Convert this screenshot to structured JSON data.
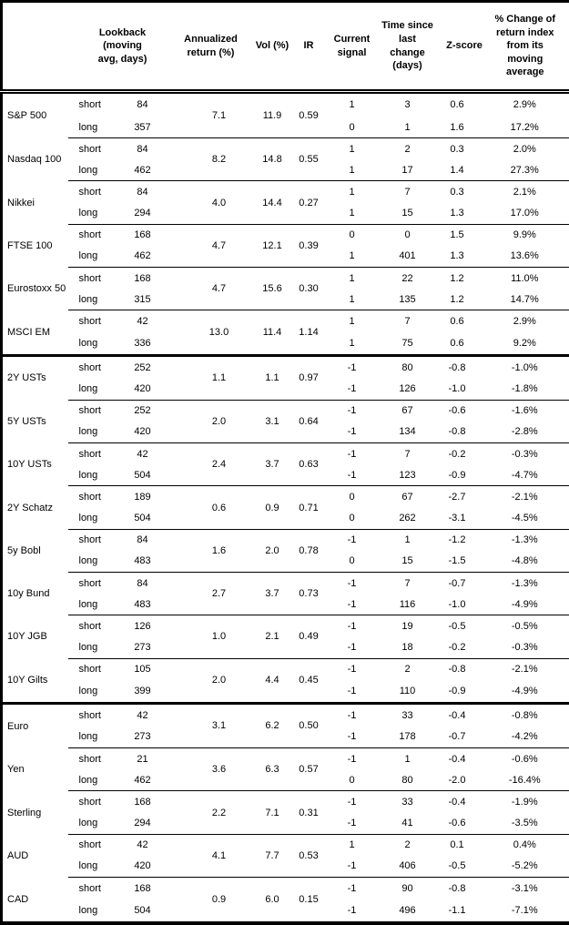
{
  "table": {
    "columns": [
      {
        "key": "asset",
        "label": ""
      },
      {
        "key": "side",
        "label": ""
      },
      {
        "key": "lookback",
        "label": "Lookback\n(moving\navg, days)"
      },
      {
        "key": "ann_return",
        "label": "Annualized\nreturn (%)"
      },
      {
        "key": "vol",
        "label": "Vol (%)"
      },
      {
        "key": "ir",
        "label": "IR"
      },
      {
        "key": "signal",
        "label": "Current\nsignal"
      },
      {
        "key": "time_since",
        "label": "Time since\nlast change\n(days)"
      },
      {
        "key": "zscore",
        "label": "Z-score"
      },
      {
        "key": "pct_change",
        "label": "% Change of\nreturn index\nfrom its\nmoving\naverage"
      }
    ],
    "side_labels": {
      "short": "short",
      "long": "long"
    },
    "groups": [
      {
        "asset": "S&P 500",
        "ann_return": "7.1",
        "vol": "11.9",
        "ir": "0.59",
        "short": {
          "lookback": "84",
          "signal": "1",
          "time_since": "3",
          "zscore": "0.6",
          "pct_change": "2.9%"
        },
        "long": {
          "lookback": "357",
          "signal": "0",
          "time_since": "1",
          "zscore": "1.6",
          "pct_change": "17.2%"
        }
      },
      {
        "asset": "Nasdaq 100",
        "ann_return": "8.2",
        "vol": "14.8",
        "ir": "0.55",
        "short": {
          "lookback": "84",
          "signal": "1",
          "time_since": "2",
          "zscore": "0.3",
          "pct_change": "2.0%"
        },
        "long": {
          "lookback": "462",
          "signal": "1",
          "time_since": "17",
          "zscore": "1.4",
          "pct_change": "27.3%"
        }
      },
      {
        "asset": "Nikkei",
        "ann_return": "4.0",
        "vol": "14.4",
        "ir": "0.27",
        "short": {
          "lookback": "84",
          "signal": "1",
          "time_since": "7",
          "zscore": "0.3",
          "pct_change": "2.1%"
        },
        "long": {
          "lookback": "294",
          "signal": "1",
          "time_since": "15",
          "zscore": "1.3",
          "pct_change": "17.0%"
        }
      },
      {
        "asset": "FTSE 100",
        "ann_return": "4.7",
        "vol": "12.1",
        "ir": "0.39",
        "short": {
          "lookback": "168",
          "signal": "0",
          "time_since": "0",
          "zscore": "1.5",
          "pct_change": "9.9%"
        },
        "long": {
          "lookback": "462",
          "signal": "1",
          "time_since": "401",
          "zscore": "1.3",
          "pct_change": "13.6%"
        }
      },
      {
        "asset": "Eurostoxx 50",
        "ann_return": "4.7",
        "vol": "15.6",
        "ir": "0.30",
        "short": {
          "lookback": "168",
          "signal": "1",
          "time_since": "22",
          "zscore": "1.2",
          "pct_change": "11.0%"
        },
        "long": {
          "lookback": "315",
          "signal": "1",
          "time_since": "135",
          "zscore": "1.2",
          "pct_change": "14.7%"
        }
      },
      {
        "asset": "MSCI EM",
        "ann_return": "13.0",
        "vol": "11.4",
        "ir": "1.14",
        "short": {
          "lookback": "42",
          "signal": "1",
          "time_since": "7",
          "zscore": "0.6",
          "pct_change": "2.9%"
        },
        "long": {
          "lookback": "336",
          "signal": "1",
          "time_since": "75",
          "zscore": "0.6",
          "pct_change": "9.2%"
        }
      },
      {
        "asset": "2Y USTs",
        "section_start": true,
        "ann_return": "1.1",
        "vol": "1.1",
        "ir": "0.97",
        "short": {
          "lookback": "252",
          "signal": "-1",
          "time_since": "80",
          "zscore": "-0.8",
          "pct_change": "-1.0%"
        },
        "long": {
          "lookback": "420",
          "signal": "-1",
          "time_since": "126",
          "zscore": "-1.0",
          "pct_change": "-1.8%"
        }
      },
      {
        "asset": "5Y USTs",
        "ann_return": "2.0",
        "vol": "3.1",
        "ir": "0.64",
        "short": {
          "lookback": "252",
          "signal": "-1",
          "time_since": "67",
          "zscore": "-0.6",
          "pct_change": "-1.6%"
        },
        "long": {
          "lookback": "420",
          "signal": "-1",
          "time_since": "134",
          "zscore": "-0.8",
          "pct_change": "-2.8%"
        }
      },
      {
        "asset": "10Y USTs",
        "ann_return": "2.4",
        "vol": "3.7",
        "ir": "0.63",
        "short": {
          "lookback": "42",
          "signal": "-1",
          "time_since": "7",
          "zscore": "-0.2",
          "pct_change": "-0.3%"
        },
        "long": {
          "lookback": "504",
          "signal": "-1",
          "time_since": "123",
          "zscore": "-0.9",
          "pct_change": "-4.7%"
        }
      },
      {
        "asset": "2Y Schatz",
        "ann_return": "0.6",
        "vol": "0.9",
        "ir": "0.71",
        "short": {
          "lookback": "189",
          "signal": "0",
          "time_since": "67",
          "zscore": "-2.7",
          "pct_change": "-2.1%"
        },
        "long": {
          "lookback": "504",
          "signal": "0",
          "time_since": "262",
          "zscore": "-3.1",
          "pct_change": "-4.5%"
        }
      },
      {
        "asset": "5y Bobl",
        "ann_return": "1.6",
        "vol": "2.0",
        "ir": "0.78",
        "short": {
          "lookback": "84",
          "signal": "-1",
          "time_since": "1",
          "zscore": "-1.2",
          "pct_change": "-1.3%"
        },
        "long": {
          "lookback": "483",
          "signal": "0",
          "time_since": "15",
          "zscore": "-1.5",
          "pct_change": "-4.8%"
        }
      },
      {
        "asset": "10y Bund",
        "ann_return": "2.7",
        "vol": "3.7",
        "ir": "0.73",
        "short": {
          "lookback": "84",
          "signal": "-1",
          "time_since": "7",
          "zscore": "-0.7",
          "pct_change": "-1.3%"
        },
        "long": {
          "lookback": "483",
          "signal": "-1",
          "time_since": "116",
          "zscore": "-1.0",
          "pct_change": "-4.9%"
        }
      },
      {
        "asset": "10Y JGB",
        "ann_return": "1.0",
        "vol": "2.1",
        "ir": "0.49",
        "short": {
          "lookback": "126",
          "signal": "-1",
          "time_since": "19",
          "zscore": "-0.5",
          "pct_change": "-0.5%"
        },
        "long": {
          "lookback": "273",
          "signal": "-1",
          "time_since": "18",
          "zscore": "-0.2",
          "pct_change": "-0.3%"
        }
      },
      {
        "asset": "10Y Gilts",
        "ann_return": "2.0",
        "vol": "4.4",
        "ir": "0.45",
        "short": {
          "lookback": "105",
          "signal": "-1",
          "time_since": "2",
          "zscore": "-0.8",
          "pct_change": "-2.1%"
        },
        "long": {
          "lookback": "399",
          "signal": "-1",
          "time_since": "110",
          "zscore": "-0.9",
          "pct_change": "-4.9%"
        }
      },
      {
        "asset": "Euro",
        "section_start": true,
        "ann_return": "3.1",
        "vol": "6.2",
        "ir": "0.50",
        "short": {
          "lookback": "42",
          "signal": "-1",
          "time_since": "33",
          "zscore": "-0.4",
          "pct_change": "-0.8%"
        },
        "long": {
          "lookback": "273",
          "signal": "-1",
          "time_since": "178",
          "zscore": "-0.7",
          "pct_change": "-4.2%"
        }
      },
      {
        "asset": "Yen",
        "ann_return": "3.6",
        "vol": "6.3",
        "ir": "0.57",
        "short": {
          "lookback": "21",
          "signal": "-1",
          "time_since": "1",
          "zscore": "-0.4",
          "pct_change": "-0.6%"
        },
        "long": {
          "lookback": "462",
          "signal": "0",
          "time_since": "80",
          "zscore": "-2.0",
          "pct_change": "-16.4%"
        }
      },
      {
        "asset": "Sterling",
        "ann_return": "2.2",
        "vol": "7.1",
        "ir": "0.31",
        "short": {
          "lookback": "168",
          "signal": "-1",
          "time_since": "33",
          "zscore": "-0.4",
          "pct_change": "-1.9%"
        },
        "long": {
          "lookback": "294",
          "signal": "-1",
          "time_since": "41",
          "zscore": "-0.6",
          "pct_change": "-3.5%"
        }
      },
      {
        "asset": "AUD",
        "ann_return": "4.1",
        "vol": "7.7",
        "ir": "0.53",
        "short": {
          "lookback": "42",
          "signal": "1",
          "time_since": "2",
          "zscore": "0.1",
          "pct_change": "0.4%"
        },
        "long": {
          "lookback": "420",
          "signal": "-1",
          "time_since": "406",
          "zscore": "-0.5",
          "pct_change": "-5.2%"
        }
      },
      {
        "asset": "CAD",
        "ann_return": "0.9",
        "vol": "6.0",
        "ir": "0.15",
        "short": {
          "lookback": "168",
          "signal": "-1",
          "time_since": "90",
          "zscore": "-0.8",
          "pct_change": "-3.1%"
        },
        "long": {
          "lookback": "504",
          "signal": "-1",
          "time_since": "496",
          "zscore": "-1.1",
          "pct_change": "-7.1%"
        }
      }
    ]
  },
  "colors": {
    "border": "#000000",
    "text": "#000000",
    "background": "#ffffff"
  }
}
